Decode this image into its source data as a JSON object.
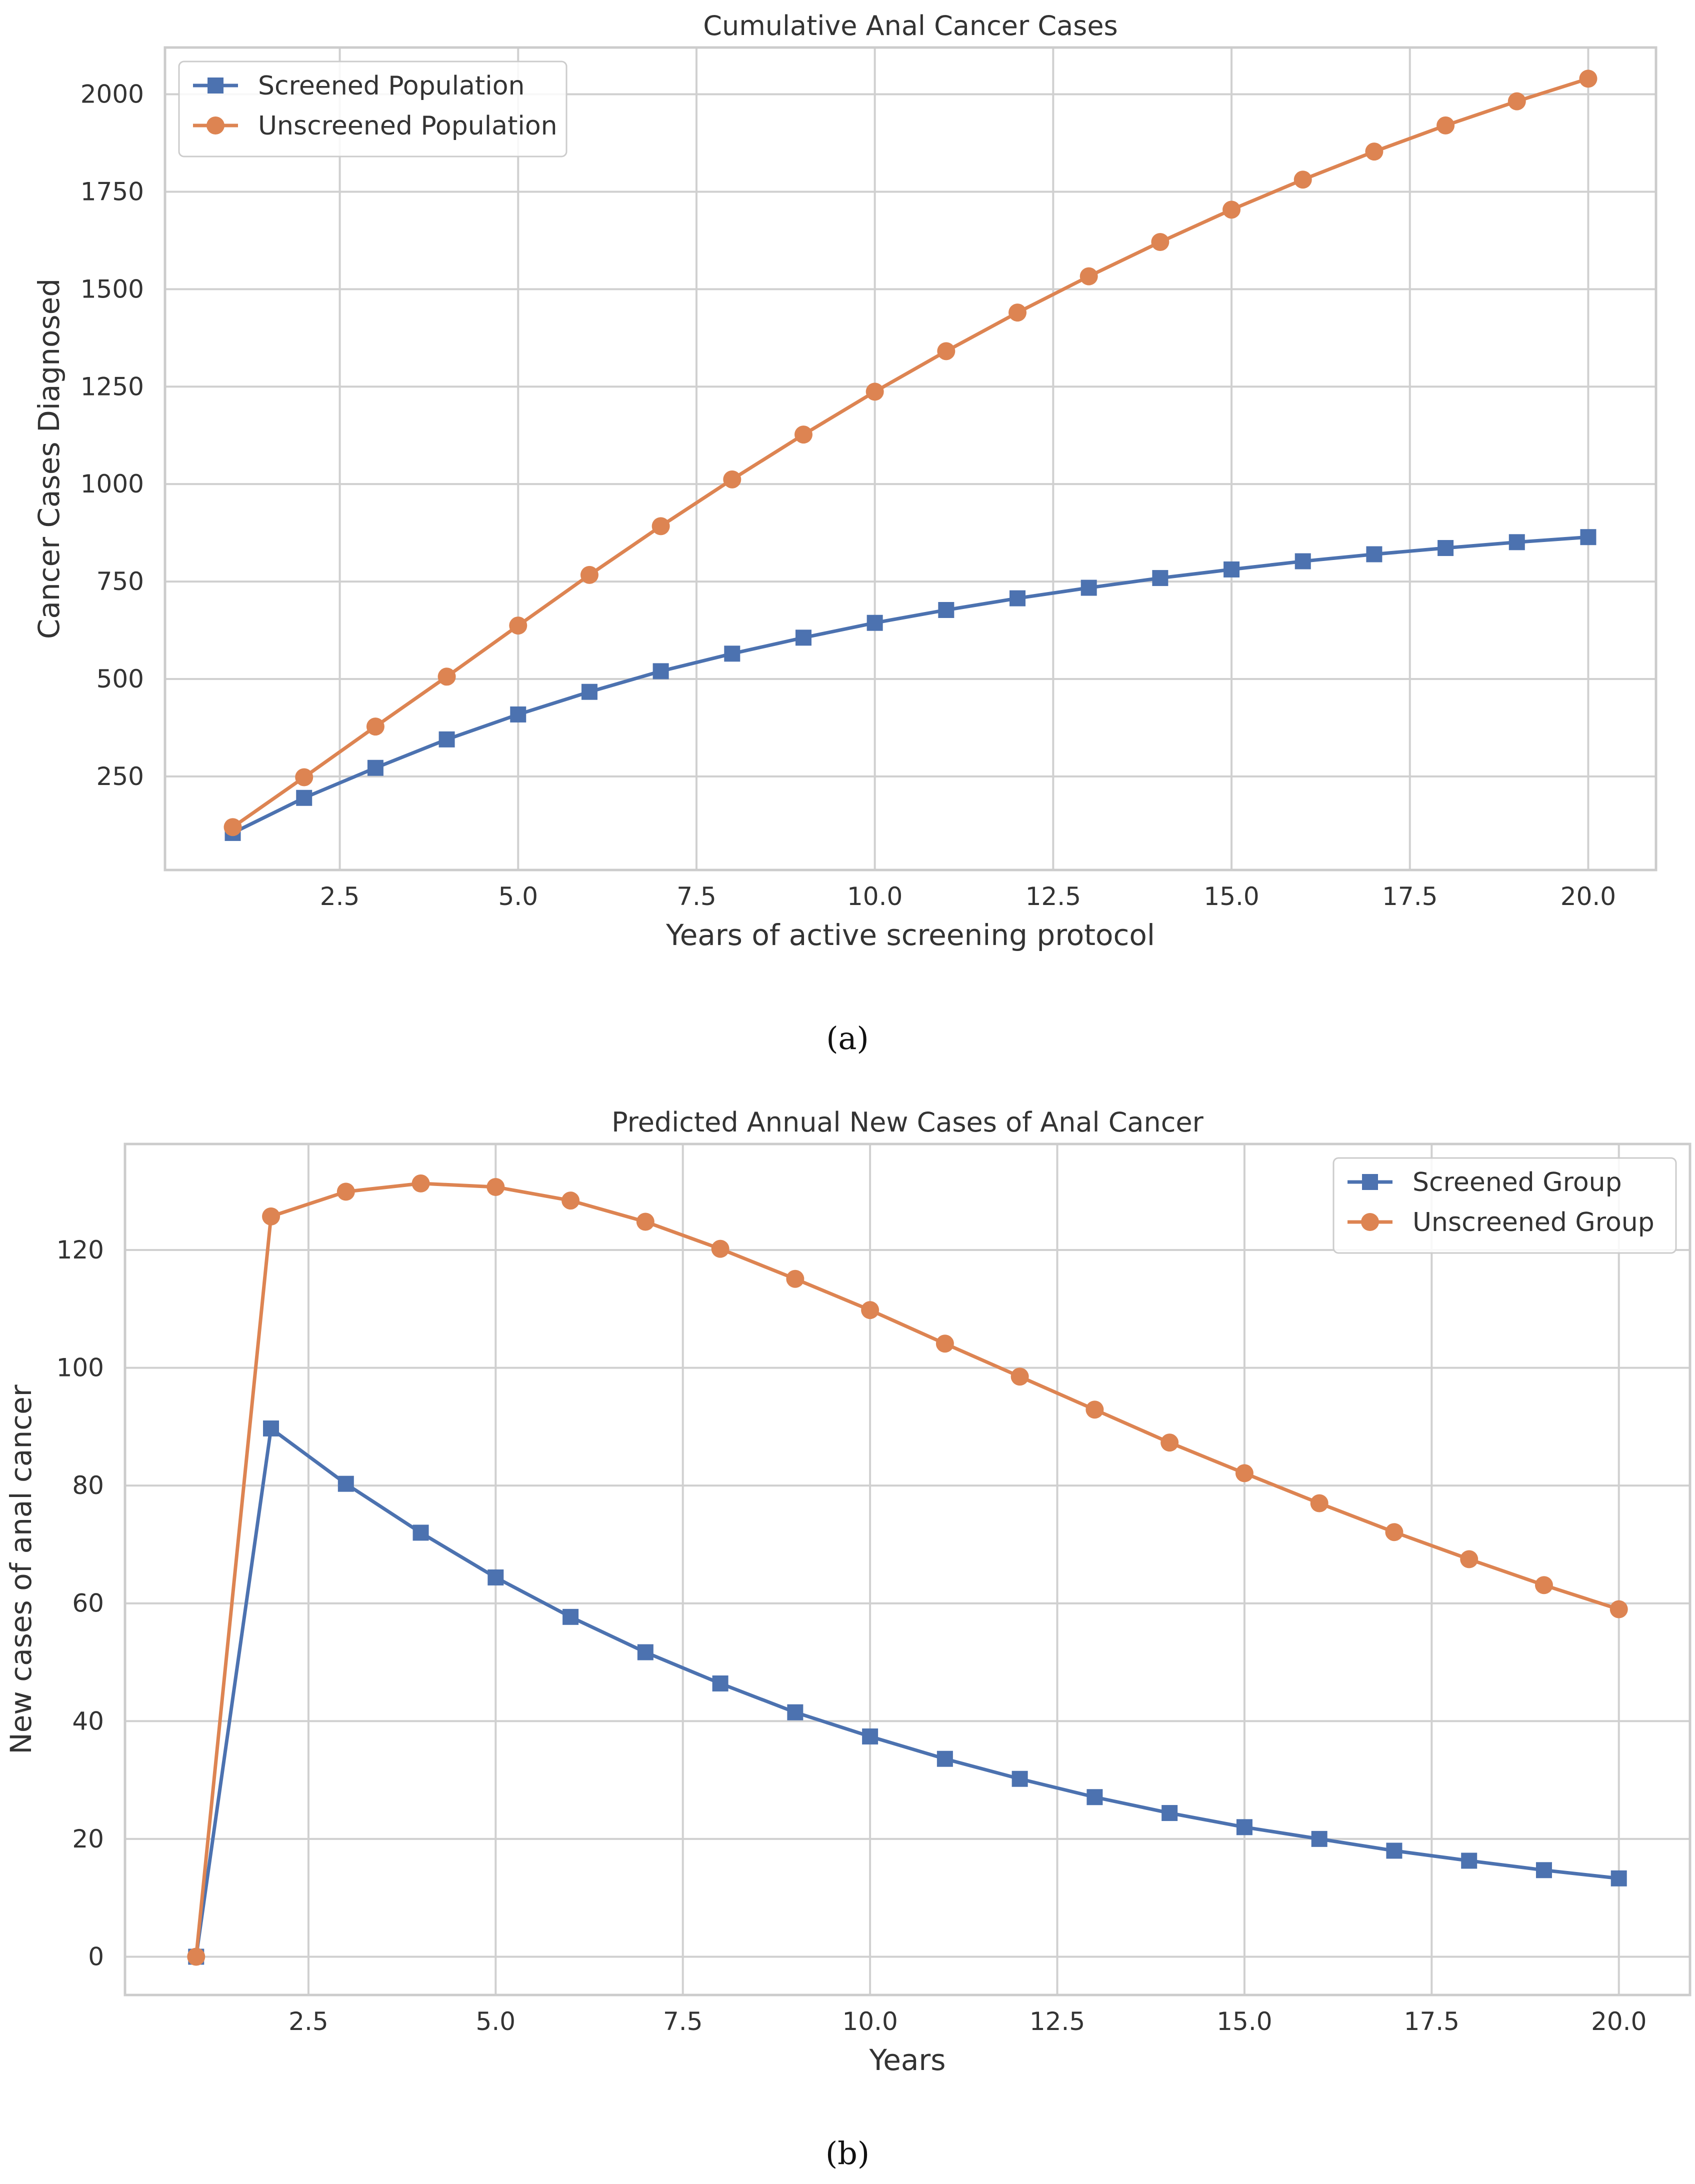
{
  "chart_data": [
    {
      "type": "line",
      "title": "Cumulative Anal Cancer Cases",
      "xlabel": "Years of active screening protocol",
      "ylabel": "Cancer Cases Diagnosed",
      "xlim": [
        0.05,
        20.95
      ],
      "ylim": [
        10,
        2120
      ],
      "xticks": [
        2.5,
        5.0,
        7.5,
        10.0,
        12.5,
        15.0,
        17.5,
        20.0
      ],
      "xtick_labels": [
        "2.5",
        "5.0",
        "7.5",
        "10.0",
        "12.5",
        "15.0",
        "17.5",
        "20.0"
      ],
      "yticks": [
        250,
        500,
        750,
        1000,
        1250,
        1500,
        1750,
        2000
      ],
      "ytick_labels": [
        "250",
        "500",
        "750",
        "1000",
        "1250",
        "1500",
        "1750",
        "2000"
      ],
      "grid": true,
      "legend_position": "top-left",
      "x": [
        1,
        2,
        3,
        4,
        5,
        6,
        7,
        8,
        9,
        10,
        11,
        12,
        13,
        14,
        15,
        16,
        17,
        18,
        19,
        20
      ],
      "series": [
        {
          "name": "Screened Population",
          "color": "#4C72B0",
          "marker": "square",
          "values": [
            105,
            195,
            272,
            345,
            409,
            467,
            520,
            565,
            606,
            644,
            677,
            707,
            734,
            759,
            781,
            802,
            820,
            836,
            851,
            864
          ]
        },
        {
          "name": "Unscreened Population",
          "color": "#DD8452",
          "marker": "circle",
          "values": [
            120,
            248,
            378,
            506,
            637,
            767,
            892,
            1012,
            1127,
            1237,
            1341,
            1440,
            1533,
            1621,
            1704,
            1781,
            1853,
            1920,
            1982,
            2040
          ]
        }
      ],
      "panel_label": "a"
    },
    {
      "type": "line",
      "title": "Predicted Annual New Cases of Anal Cancer",
      "xlabel": "Years",
      "ylabel": "New cases of anal cancer",
      "xlim": [
        0.05,
        20.95
      ],
      "ylim": [
        -6.5,
        138
      ],
      "xticks": [
        2.5,
        5.0,
        7.5,
        10.0,
        12.5,
        15.0,
        17.5,
        20.0
      ],
      "xtick_labels": [
        "2.5",
        "5.0",
        "7.5",
        "10.0",
        "12.5",
        "15.0",
        "17.5",
        "20.0"
      ],
      "yticks": [
        0,
        20,
        40,
        60,
        80,
        100,
        120
      ],
      "ytick_labels": [
        "0",
        "20",
        "40",
        "60",
        "80",
        "100",
        "120"
      ],
      "grid": true,
      "legend_position": "top-right",
      "x": [
        1,
        2,
        3,
        4,
        5,
        6,
        7,
        8,
        9,
        10,
        11,
        12,
        13,
        14,
        15,
        16,
        17,
        18,
        19,
        20
      ],
      "series": [
        {
          "name": "Screened Group",
          "color": "#4C72B0",
          "marker": "square",
          "values": [
            0,
            89.7,
            80.3,
            72.0,
            64.4,
            57.7,
            51.7,
            46.4,
            41.5,
            37.4,
            33.6,
            30.2,
            27.1,
            24.4,
            22.0,
            20.0,
            18.0,
            16.3,
            14.7,
            13.3
          ]
        },
        {
          "name": "Unscreened Group",
          "color": "#DD8452",
          "marker": "circle",
          "values": [
            0,
            125.7,
            129.9,
            131.3,
            130.7,
            128.4,
            124.8,
            120.2,
            115.1,
            109.8,
            104.1,
            98.5,
            92.9,
            87.3,
            82.1,
            77.0,
            72.1,
            67.5,
            63.1,
            59.0
          ]
        }
      ],
      "panel_label": "b"
    }
  ],
  "panel_labels": {
    "a": "(a)",
    "b": "(b)"
  },
  "style": {
    "grid_color": "#d0d0d0",
    "axis_color": "#cccccc",
    "text_color": "#333333"
  }
}
